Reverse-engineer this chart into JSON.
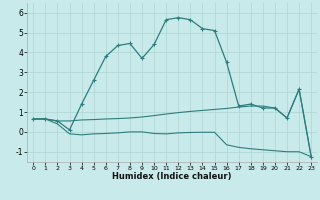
{
  "xlabel": "Humidex (Indice chaleur)",
  "background_color": "#c8eaea",
  "grid_color": "#afd4d4",
  "line_color": "#2e7d7d",
  "plot_bg": "#c8eaea",
  "border_color": "#aaaaaa",
  "xlim": [
    -0.5,
    23.5
  ],
  "ylim": [
    -1.5,
    6.5
  ],
  "yticks": [
    -1,
    0,
    1,
    2,
    3,
    4,
    5,
    6
  ],
  "xticks": [
    0,
    1,
    2,
    3,
    4,
    5,
    6,
    7,
    8,
    9,
    10,
    11,
    12,
    13,
    14,
    15,
    16,
    17,
    18,
    19,
    20,
    21,
    22,
    23
  ],
  "series1_x": [
    0,
    1,
    2,
    3,
    4,
    5,
    6,
    7,
    8,
    9,
    10,
    11,
    12,
    13,
    14,
    15,
    16,
    17,
    18,
    19,
    20,
    21,
    22,
    23
  ],
  "series1_y": [
    0.65,
    0.65,
    0.55,
    0.1,
    1.4,
    2.6,
    3.8,
    4.35,
    4.45,
    3.7,
    4.4,
    5.65,
    5.75,
    5.65,
    5.2,
    5.1,
    3.5,
    1.3,
    1.4,
    1.2,
    1.2,
    0.7,
    2.15,
    -1.25
  ],
  "series2_x": [
    0,
    1,
    2,
    3,
    4,
    5,
    6,
    7,
    8,
    9,
    10,
    11,
    12,
    13,
    14,
    15,
    16,
    17,
    18,
    19,
    20,
    21,
    22,
    23
  ],
  "series2_y": [
    0.65,
    0.65,
    0.55,
    0.55,
    0.6,
    0.62,
    0.65,
    0.67,
    0.7,
    0.75,
    0.82,
    0.9,
    0.97,
    1.03,
    1.08,
    1.13,
    1.18,
    1.25,
    1.3,
    1.3,
    1.2,
    0.7,
    2.15,
    -1.25
  ],
  "series3_x": [
    0,
    1,
    2,
    3,
    4,
    5,
    6,
    7,
    8,
    9,
    10,
    11,
    12,
    13,
    14,
    15,
    16,
    17,
    18,
    19,
    20,
    21,
    22,
    23
  ],
  "series3_y": [
    0.65,
    0.65,
    0.4,
    -0.1,
    -0.15,
    -0.1,
    -0.08,
    -0.05,
    -0.0,
    0.0,
    -0.08,
    -0.1,
    -0.05,
    -0.03,
    -0.02,
    -0.02,
    -0.65,
    -0.78,
    -0.85,
    -0.9,
    -0.95,
    -1.0,
    -1.0,
    -1.25
  ]
}
